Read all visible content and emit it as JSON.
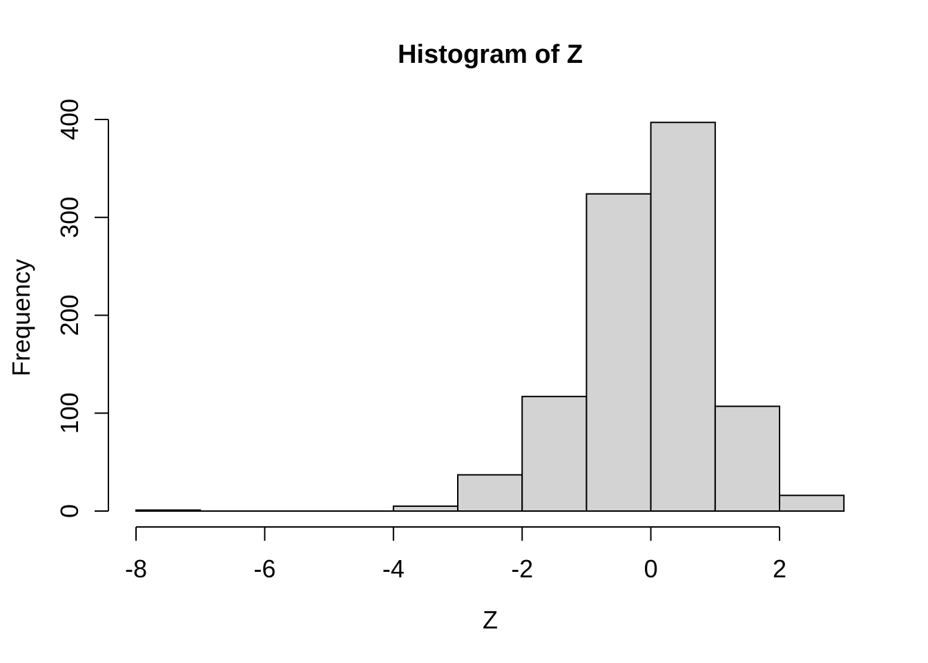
{
  "chart_data": {
    "type": "bar",
    "subtype": "histogram",
    "title": "Histogram of Z",
    "xlabel": "Z",
    "ylabel": "Frequency",
    "xlim": [
      -8,
      3
    ],
    "ylim": [
      0,
      400
    ],
    "x_ticks": [
      -8,
      -6,
      -4,
      -2,
      0,
      2
    ],
    "y_ticks": [
      0,
      100,
      200,
      300,
      400
    ],
    "grid": false,
    "legend": null,
    "bin_width": 1,
    "bins": [
      {
        "start": -8,
        "end": -7,
        "count": 1
      },
      {
        "start": -7,
        "end": -6,
        "count": 0
      },
      {
        "start": -6,
        "end": -5,
        "count": 0
      },
      {
        "start": -5,
        "end": -4,
        "count": 0
      },
      {
        "start": -4,
        "end": -3,
        "count": 5
      },
      {
        "start": -3,
        "end": -2,
        "count": 37
      },
      {
        "start": -2,
        "end": -1,
        "count": 117
      },
      {
        "start": -1,
        "end": 0,
        "count": 324
      },
      {
        "start": 0,
        "end": 1,
        "count": 397
      },
      {
        "start": 1,
        "end": 2,
        "count": 107
      },
      {
        "start": 2,
        "end": 3,
        "count": 16
      }
    ],
    "colors": {
      "bar_fill": "#d3d3d3",
      "bar_stroke": "#000000",
      "axis": "#000000",
      "text": "#000000",
      "background": "#ffffff"
    }
  }
}
